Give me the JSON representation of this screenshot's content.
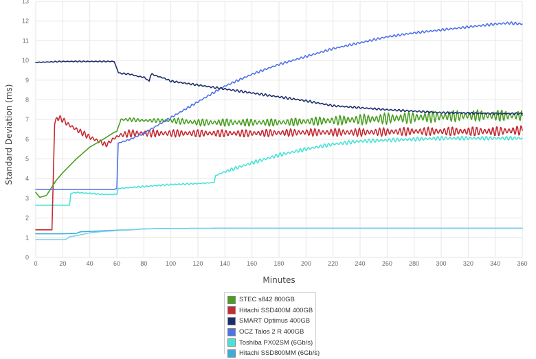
{
  "chart_data": {
    "type": "line",
    "title": "",
    "xlabel": "Minutes",
    "ylabel": "Standard Deviation (ms)",
    "xlim": [
      0,
      360
    ],
    "ylim": [
      0,
      13
    ],
    "x_ticks": [
      0,
      20,
      40,
      60,
      80,
      100,
      120,
      140,
      160,
      180,
      200,
      220,
      240,
      260,
      280,
      300,
      320,
      340,
      360
    ],
    "y_ticks": [
      0,
      1,
      2,
      3,
      4,
      5,
      6,
      7,
      8,
      9,
      10,
      11,
      12,
      13
    ],
    "grid": true,
    "legend_position": "bottom-center",
    "series": [
      {
        "name": "STEC s842 800GB",
        "color": "#4a9e22",
        "x": [
          0,
          3,
          8,
          15,
          20,
          30,
          40,
          50,
          58,
          60,
          63,
          70,
          80,
          90,
          100,
          120,
          140,
          160,
          180,
          200,
          220,
          240,
          260,
          280,
          300,
          320,
          340,
          360
        ],
        "values": [
          3.3,
          3.05,
          3.15,
          3.9,
          4.3,
          5.0,
          5.6,
          6.0,
          6.35,
          6.4,
          7.0,
          7.0,
          6.95,
          6.95,
          6.95,
          6.85,
          6.85,
          6.85,
          6.85,
          6.9,
          6.95,
          7.0,
          7.05,
          7.1,
          7.15,
          7.2,
          7.2,
          7.2
        ],
        "noise": [
          0,
          0,
          0,
          0,
          0,
          0,
          0,
          0,
          0,
          0,
          0.08,
          0.1,
          0.1,
          0.1,
          0.15,
          0.18,
          0.2,
          0.2,
          0.2,
          0.22,
          0.25,
          0.28,
          0.3,
          0.3,
          0.3,
          0.3,
          0.3,
          0.3
        ]
      },
      {
        "name": "Hitachi SSD400M 400GB",
        "color": "#c62a33",
        "x": [
          0,
          12,
          14,
          16,
          20,
          23,
          30,
          40,
          50,
          52,
          58,
          62,
          70,
          80,
          100,
          120,
          140,
          160,
          200,
          240,
          280,
          320,
          340,
          360
        ],
        "values": [
          1.4,
          1.4,
          6.8,
          7.1,
          7.0,
          6.8,
          6.5,
          6.1,
          5.8,
          5.7,
          6.05,
          6.2,
          6.3,
          6.3,
          6.3,
          6.3,
          6.3,
          6.3,
          6.35,
          6.35,
          6.4,
          6.4,
          6.4,
          6.45
        ],
        "noise": [
          0,
          0,
          0.1,
          0.15,
          0.15,
          0.15,
          0.15,
          0.15,
          0.15,
          0.1,
          0.1,
          0.15,
          0.2,
          0.2,
          0.2,
          0.2,
          0.2,
          0.2,
          0.2,
          0.22,
          0.22,
          0.25,
          0.25,
          0.25
        ]
      },
      {
        "name": "SMART Optimus 400GB",
        "color": "#1c2e6e",
        "x": [
          0,
          20,
          40,
          58,
          60,
          61,
          62,
          70,
          75,
          80,
          84,
          85,
          86,
          90,
          95,
          100,
          120,
          140,
          160,
          180,
          200,
          220,
          260,
          300,
          340,
          360
        ],
        "values": [
          9.9,
          9.95,
          9.95,
          9.95,
          9.6,
          9.4,
          9.35,
          9.3,
          9.2,
          9.15,
          8.95,
          9.25,
          9.3,
          9.2,
          9.1,
          8.95,
          8.75,
          8.55,
          8.35,
          8.15,
          7.95,
          7.7,
          7.5,
          7.35,
          7.3,
          7.3
        ],
        "noise": [
          0.02,
          0.03,
          0.03,
          0.03,
          0,
          0,
          0.04,
          0.04,
          0.04,
          0.04,
          0,
          0,
          0.04,
          0.04,
          0.04,
          0.05,
          0.05,
          0.06,
          0.06,
          0.06,
          0.06,
          0.05,
          0.05,
          0.05,
          0.05,
          0.05
        ]
      },
      {
        "name": "OCZ Talos 2 R 400GB",
        "color": "#4f73e3",
        "x": [
          0,
          30,
          58,
          60,
          61,
          70,
          80,
          90,
          100,
          110,
          120,
          140,
          160,
          180,
          200,
          220,
          240,
          260,
          280,
          300,
          320,
          340,
          350,
          360
        ],
        "values": [
          3.45,
          3.45,
          3.45,
          3.5,
          5.8,
          6.0,
          6.3,
          6.7,
          7.1,
          7.5,
          7.9,
          8.7,
          9.3,
          9.8,
          10.2,
          10.6,
          10.9,
          11.2,
          11.4,
          11.55,
          11.7,
          11.85,
          11.9,
          11.85
        ],
        "noise": [
          0,
          0,
          0,
          0,
          0,
          0.05,
          0.05,
          0.05,
          0.06,
          0.06,
          0.06,
          0.06,
          0.06,
          0.06,
          0.06,
          0.06,
          0.06,
          0.06,
          0.06,
          0.06,
          0.06,
          0.07,
          0.07,
          0.07
        ]
      },
      {
        "name": "Toshiba PX02SM (6Gb/s)",
        "color": "#49e3d6",
        "x": [
          0,
          25,
          26,
          30,
          40,
          50,
          58,
          60,
          61,
          70,
          80,
          100,
          120,
          132,
          133,
          140,
          160,
          180,
          200,
          220,
          240,
          260,
          280,
          300,
          320,
          340,
          360
        ],
        "values": [
          2.65,
          2.65,
          3.25,
          3.3,
          3.25,
          3.2,
          3.2,
          3.2,
          3.5,
          3.55,
          3.6,
          3.7,
          3.75,
          3.8,
          4.15,
          4.35,
          4.8,
          5.2,
          5.5,
          5.75,
          5.9,
          5.95,
          6.0,
          6.05,
          6.05,
          6.05,
          6.05
        ],
        "noise": [
          0,
          0,
          0,
          0.03,
          0.03,
          0.03,
          0.03,
          0,
          0,
          0.04,
          0.04,
          0.04,
          0.04,
          0,
          0,
          0.08,
          0.1,
          0.1,
          0.1,
          0.1,
          0.1,
          0.1,
          0.1,
          0.1,
          0.1,
          0.1,
          0.1
        ]
      },
      {
        "name": "Hitachi SSD800MM (6Gb/s)",
        "color": "#3aaed8",
        "x": [
          0,
          20,
          30,
          33,
          40,
          50,
          60,
          70,
          80,
          100,
          150,
          200,
          250,
          300,
          360
        ],
        "values": [
          1.2,
          1.2,
          1.22,
          1.3,
          1.32,
          1.35,
          1.38,
          1.4,
          1.45,
          1.47,
          1.48,
          1.48,
          1.48,
          1.48,
          1.48
        ],
        "noise": [
          0,
          0,
          0,
          0,
          0,
          0,
          0,
          0,
          0,
          0,
          0,
          0,
          0,
          0,
          0
        ]
      },
      {
        "name": "",
        "color": "#7ad0ec",
        "x": [
          0,
          22,
          25,
          30,
          40,
          50,
          60,
          70,
          80,
          100,
          150,
          200,
          250,
          300,
          360
        ],
        "values": [
          0.9,
          0.9,
          1.05,
          1.1,
          1.25,
          1.32,
          1.36,
          1.4,
          1.45,
          1.47,
          1.48,
          1.48,
          1.48,
          1.48,
          1.48
        ],
        "noise": [
          0,
          0,
          0,
          0,
          0,
          0,
          0,
          0,
          0,
          0,
          0,
          0,
          0,
          0,
          0
        ]
      }
    ]
  }
}
